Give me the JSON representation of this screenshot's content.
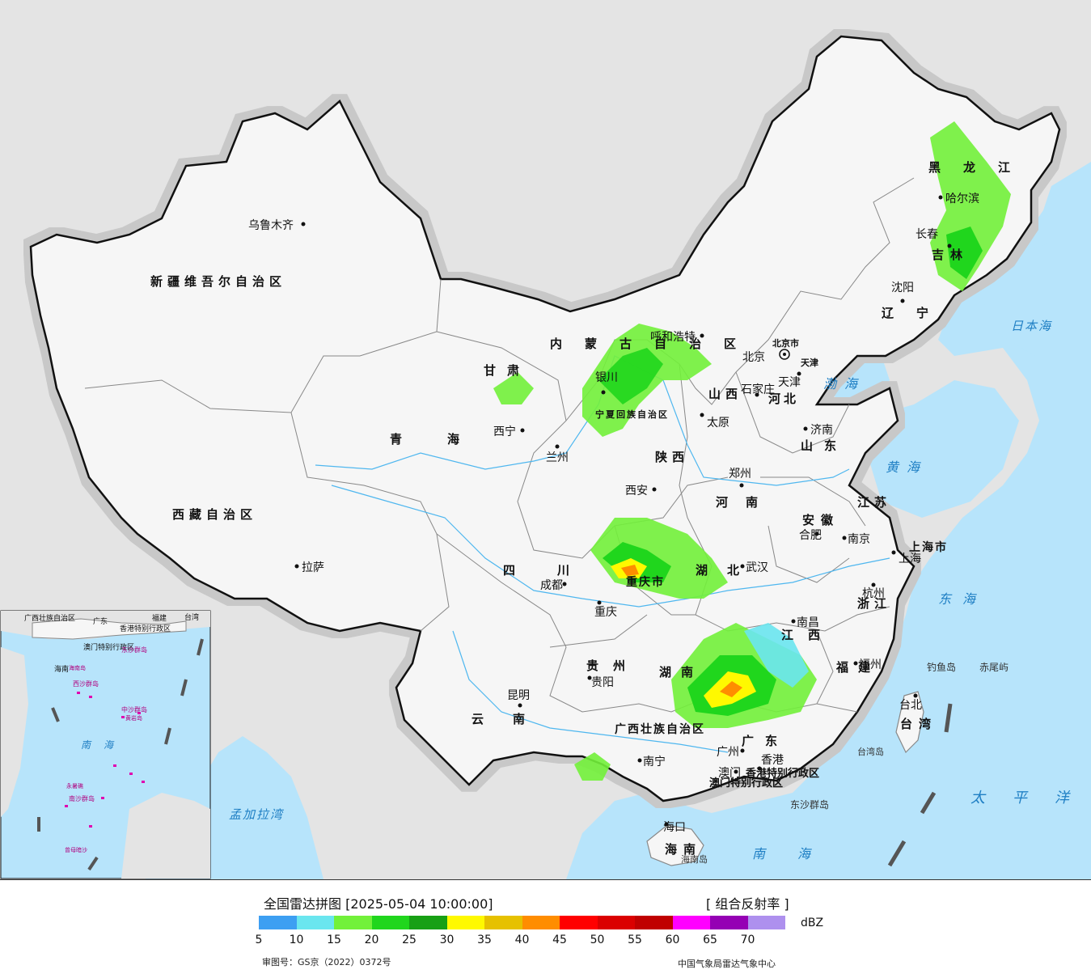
{
  "map": {
    "cities": [
      {
        "name": "乌鲁木齐",
        "id": "urumqi"
      },
      {
        "name": "拉萨",
        "id": "lhasa"
      },
      {
        "name": "西宁",
        "id": "xining"
      },
      {
        "name": "兰州",
        "id": "lanzhou"
      },
      {
        "name": "银川",
        "id": "yinchuan"
      },
      {
        "name": "呼和浩特",
        "id": "hohhot"
      },
      {
        "name": "北京",
        "id": "beijing"
      },
      {
        "name": "天津",
        "id": "tianjin"
      },
      {
        "name": "石家庄",
        "id": "shijiazhuang"
      },
      {
        "name": "太原",
        "id": "taiyuan"
      },
      {
        "name": "济南",
        "id": "jinan"
      },
      {
        "name": "郑州",
        "id": "zhengzhou"
      },
      {
        "name": "西安",
        "id": "xian"
      },
      {
        "name": "合肥",
        "id": "hefei"
      },
      {
        "name": "南京",
        "id": "nanjing"
      },
      {
        "name": "上海",
        "id": "shanghai"
      },
      {
        "name": "杭州",
        "id": "hangzhou"
      },
      {
        "name": "武汉",
        "id": "wuhan"
      },
      {
        "name": "成都",
        "id": "chengdu"
      },
      {
        "name": "重庆",
        "id": "chongqing"
      },
      {
        "name": "贵阳",
        "id": "guiyang"
      },
      {
        "name": "昆明",
        "id": "kunming"
      },
      {
        "name": "南宁",
        "id": "nanning"
      },
      {
        "name": "广州",
        "id": "guangzhou"
      },
      {
        "name": "香港",
        "id": "hongkong"
      },
      {
        "name": "澳门",
        "id": "macau"
      },
      {
        "name": "海口",
        "id": "haikou"
      },
      {
        "name": "南昌",
        "id": "nanchang"
      },
      {
        "name": "福州",
        "id": "fuzhou"
      },
      {
        "name": "台北",
        "id": "taipei"
      },
      {
        "name": "沈阳",
        "id": "shenyang"
      },
      {
        "name": "长春",
        "id": "changchun"
      },
      {
        "name": "哈尔滨",
        "id": "harbin"
      }
    ],
    "regions": [
      "新疆维吾尔自治区",
      "西藏自治区",
      "青海",
      "甘肃",
      "内蒙古自治区",
      "宁夏回族自治区",
      "黑龙江",
      "吉林",
      "辽宁",
      "河北",
      "山西",
      "陕西",
      "河南",
      "山东",
      "江苏",
      "安徽",
      "上海市",
      "浙江",
      "湖北",
      "湖南",
      "江西",
      "福建",
      "台湾",
      "广东",
      "广西壮族自治区",
      "贵州",
      "云南",
      "四川",
      "重庆市",
      "海南",
      "天津",
      "北京市",
      "香港特别行政区",
      "澳门特别行政区"
    ],
    "seas": [
      "渤海",
      "黄海",
      "东海",
      "南海",
      "日本海",
      "太平洋",
      "孟加拉湾"
    ],
    "islands": [
      "钓鱼岛",
      "赤尾屿",
      "东沙群岛",
      "海南岛",
      "台湾岛"
    ],
    "inset_labels": [
      "广西壮族自治区",
      "广东",
      "福建",
      "台湾",
      "澳门特别行政区",
      "香港特别行政区",
      "海南",
      "南海",
      "中沙群岛",
      "西沙群岛",
      "南沙群岛",
      "东沙群岛",
      "永暑礁",
      "曾母暗沙",
      "黄岩岛",
      "海南岛"
    ]
  },
  "legend": {
    "title": "全国雷达拼图 [2025-05-04 10:00:00]",
    "product": "[ 组合反射率 ]",
    "unit": "dBZ",
    "colors": [
      "#3d9ff2",
      "#6ae6ef",
      "#72f13a",
      "#20d61d",
      "#17a015",
      "#fff900",
      "#e6c100",
      "#ff8d00",
      "#ff0000",
      "#db0000",
      "#c00000",
      "#ff00ff",
      "#9500b4",
      "#ae90ee"
    ],
    "ticks": [
      "5",
      "10",
      "15",
      "20",
      "25",
      "30",
      "35",
      "40",
      "45",
      "50",
      "55",
      "60",
      "65",
      "70"
    ],
    "review_no": "审图号：GS京（2022）0372号",
    "org": "中国气象局雷达气象中心"
  }
}
